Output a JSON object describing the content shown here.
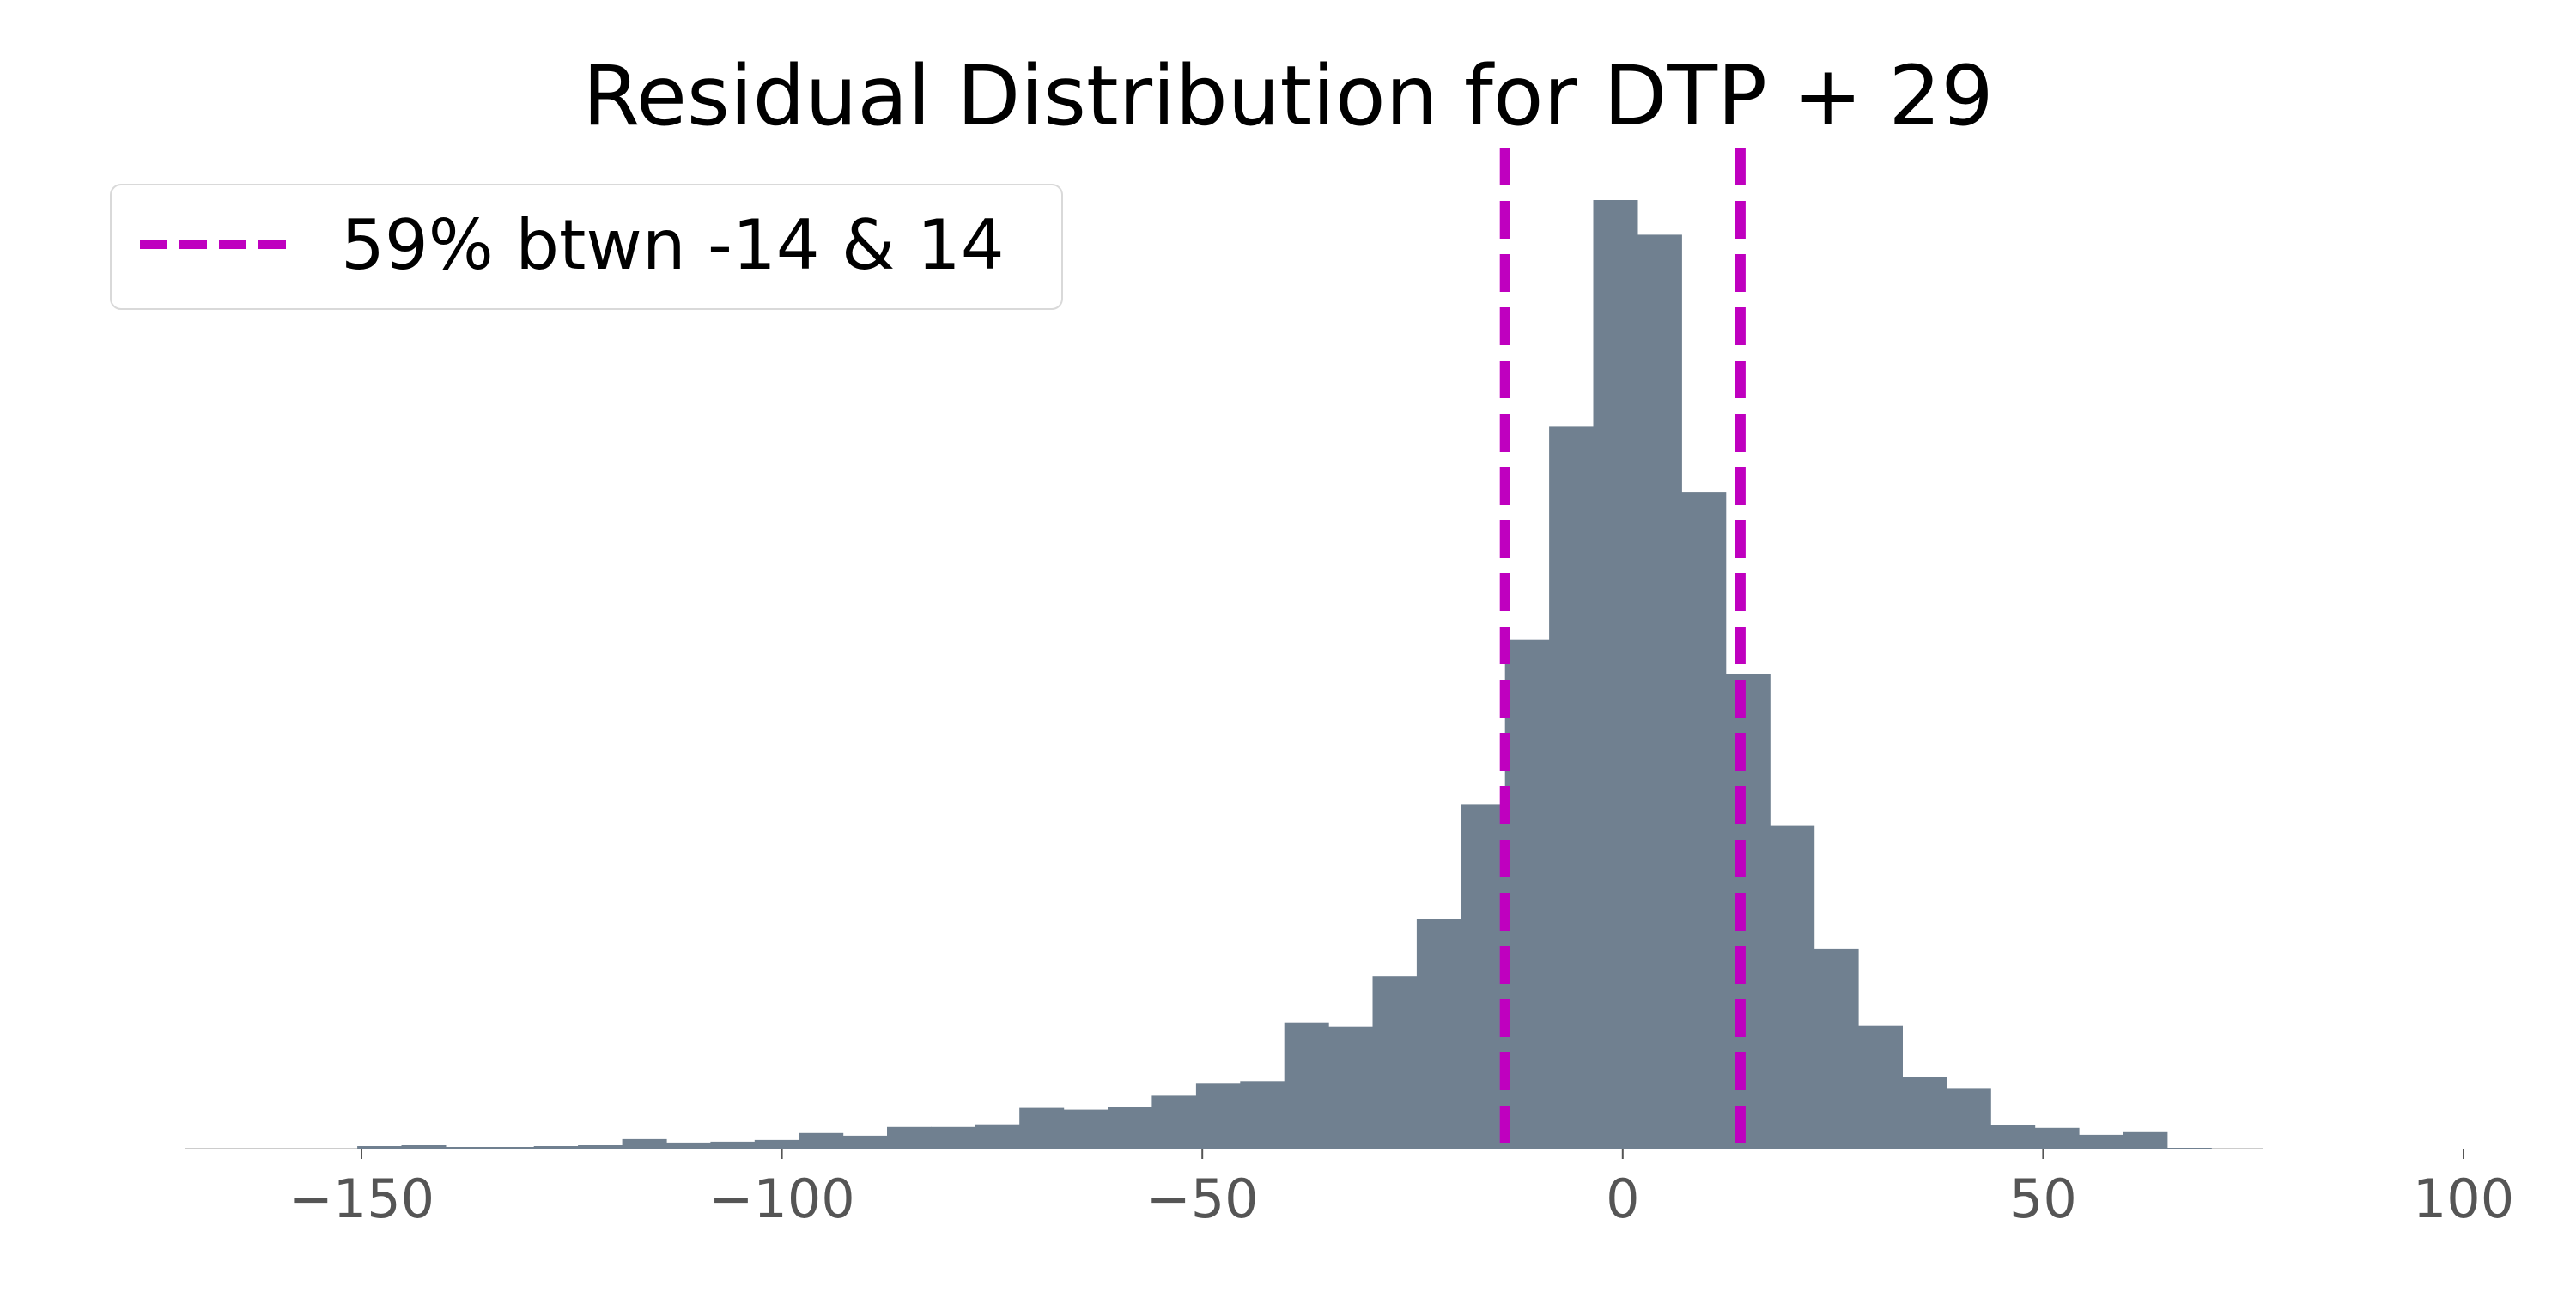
{
  "chart_data": {
    "type": "bar",
    "title": "Residual Distribution for DTP + 29",
    "xlabel": "",
    "ylabel": "",
    "xlim": [
      -170,
      100
    ],
    "ylim": [
      0,
      1100
    ],
    "xticks": [
      -150,
      -100,
      -50,
      0,
      50,
      100
    ],
    "xtick_labels": [
      "−150",
      "−100",
      "−50",
      "0",
      "50",
      "100"
    ],
    "y_axis_visible": false,
    "grid": false,
    "bin_width": 5.25,
    "bins": [
      {
        "start": -150.5,
        "count": 3
      },
      {
        "start": -145.25,
        "count": 4
      },
      {
        "start": -140.0,
        "count": 2
      },
      {
        "start": -134.75,
        "count": 2
      },
      {
        "start": -129.5,
        "count": 3
      },
      {
        "start": -124.25,
        "count": 4
      },
      {
        "start": -119.0,
        "count": 11
      },
      {
        "start": -113.75,
        "count": 7
      },
      {
        "start": -108.5,
        "count": 8
      },
      {
        "start": -103.25,
        "count": 10
      },
      {
        "start": -98.0,
        "count": 18
      },
      {
        "start": -92.75,
        "count": 15
      },
      {
        "start": -87.5,
        "count": 25
      },
      {
        "start": -82.25,
        "count": 25
      },
      {
        "start": -77.0,
        "count": 28
      },
      {
        "start": -71.75,
        "count": 47
      },
      {
        "start": -66.5,
        "count": 45
      },
      {
        "start": -61.25,
        "count": 48
      },
      {
        "start": -56.0,
        "count": 61
      },
      {
        "start": -50.75,
        "count": 75
      },
      {
        "start": -45.5,
        "count": 78
      },
      {
        "start": -40.25,
        "count": 145
      },
      {
        "start": -35.0,
        "count": 141
      },
      {
        "start": -29.75,
        "count": 199
      },
      {
        "start": -24.5,
        "count": 265
      },
      {
        "start": -19.25,
        "count": 397
      },
      {
        "start": -14.0,
        "count": 588
      },
      {
        "start": -8.75,
        "count": 834
      },
      {
        "start": -3.5,
        "count": 1095
      },
      {
        "start": 1.75,
        "count": 1055
      },
      {
        "start": 7.0,
        "count": 758
      },
      {
        "start": 12.25,
        "count": 548
      },
      {
        "start": 17.5,
        "count": 373
      },
      {
        "start": 22.75,
        "count": 231
      },
      {
        "start": 28.0,
        "count": 142
      },
      {
        "start": 33.25,
        "count": 83
      },
      {
        "start": 38.5,
        "count": 70
      },
      {
        "start": 43.75,
        "count": 27
      },
      {
        "start": 49.0,
        "count": 24
      },
      {
        "start": 54.25,
        "count": 16
      },
      {
        "start": 59.5,
        "count": 19
      },
      {
        "start": 64.75,
        "count": 1
      }
    ],
    "bar_color": "#708090",
    "reference_lines": [
      {
        "x": -14,
        "style": "dashed",
        "color": "#bf00bf"
      },
      {
        "x": 14,
        "style": "dashed",
        "color": "#bf00bf"
      }
    ],
    "legend": {
      "placement": "top-left",
      "entries": [
        {
          "label": "59% btwn -14 & 14",
          "color": "#bf00bf",
          "style": "dashed"
        }
      ]
    }
  }
}
